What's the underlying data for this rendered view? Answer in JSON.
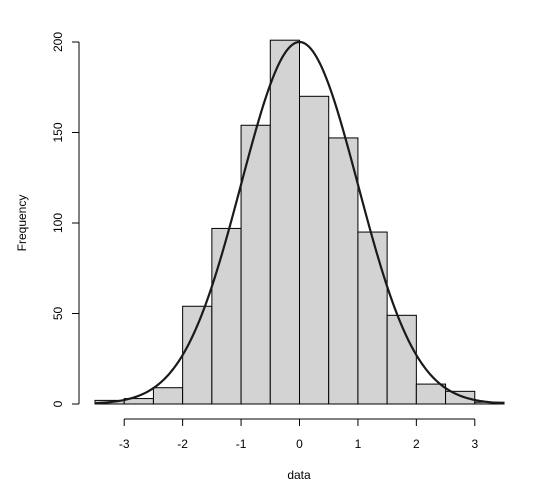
{
  "chart_data": {
    "type": "bar",
    "title": "",
    "xlabel": "data",
    "ylabel": "Frequency",
    "xlim": [
      -3.5,
      3.5
    ],
    "ylim": [
      0,
      200
    ],
    "x_ticks": [
      -3,
      -2,
      -1,
      0,
      1,
      2,
      3
    ],
    "y_ticks": [
      0,
      50,
      100,
      150,
      200
    ],
    "bins": [
      {
        "x0": -3.5,
        "x1": -3.0,
        "count": 2
      },
      {
        "x0": -3.0,
        "x1": -2.5,
        "count": 3
      },
      {
        "x0": -2.5,
        "x1": -2.0,
        "count": 9
      },
      {
        "x0": -2.0,
        "x1": -1.5,
        "count": 54
      },
      {
        "x0": -1.5,
        "x1": -1.0,
        "count": 97
      },
      {
        "x0": -1.0,
        "x1": -0.5,
        "count": 154
      },
      {
        "x0": -0.5,
        "x1": 0.0,
        "count": 201
      },
      {
        "x0": 0.0,
        "x1": 0.5,
        "count": 170
      },
      {
        "x0": 0.5,
        "x1": 1.0,
        "count": 147
      },
      {
        "x0": 1.0,
        "x1": 1.5,
        "count": 95
      },
      {
        "x0": 1.5,
        "x1": 2.0,
        "count": 49
      },
      {
        "x0": 2.0,
        "x1": 2.5,
        "count": 11
      },
      {
        "x0": 2.5,
        "x1": 3.0,
        "count": 7
      },
      {
        "x0": 3.0,
        "x1": 3.5,
        "count": 1
      }
    ],
    "curve": {
      "type": "normal-density",
      "mean": 0,
      "sd": 1,
      "peak": 200
    },
    "grid": false,
    "legend": "none"
  },
  "colors": {
    "bar_fill": "#d3d3d3",
    "bar_stroke": "#000000",
    "curve": "#1a1a1a"
  }
}
